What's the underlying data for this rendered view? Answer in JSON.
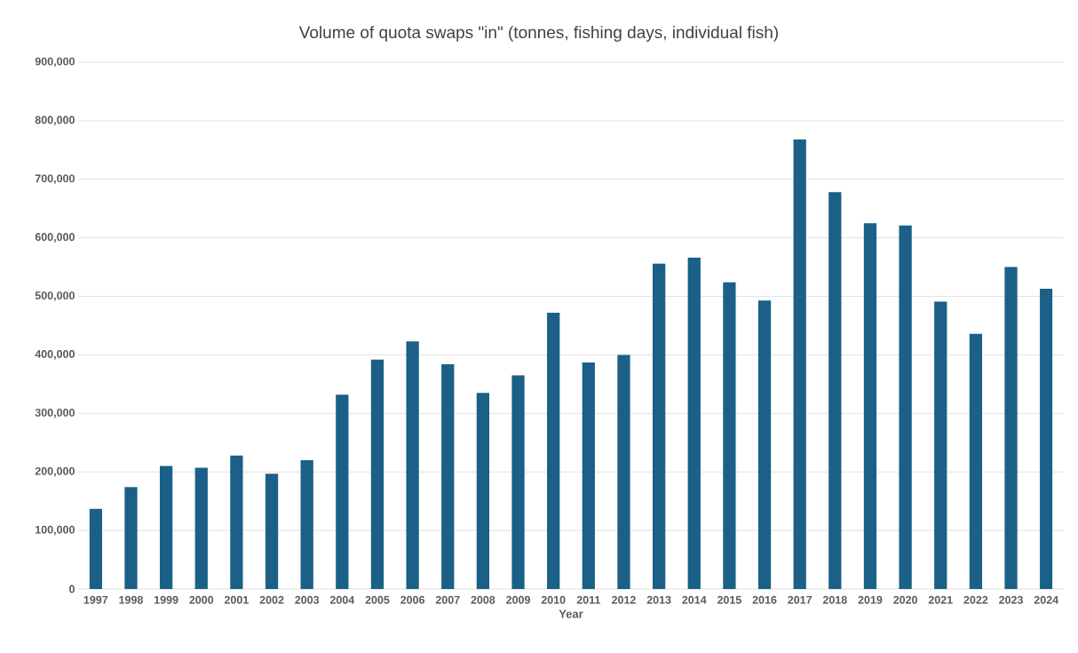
{
  "chart_data": {
    "type": "bar",
    "title": "Volume of quota swaps \"in\" (tonnes, fishing days, individual fish)",
    "xlabel": "Year",
    "categories": [
      "1997",
      "1998",
      "1999",
      "2000",
      "2001",
      "2002",
      "2003",
      "2004",
      "2005",
      "2006",
      "2007",
      "2008",
      "2009",
      "2010",
      "2011",
      "2012",
      "2013",
      "2014",
      "2015",
      "2016",
      "2017",
      "2018",
      "2019",
      "2020",
      "2021",
      "2022",
      "2023",
      "2024"
    ],
    "values": [
      137000,
      174000,
      210000,
      207000,
      228000,
      197000,
      220000,
      332000,
      392000,
      423000,
      384000,
      335000,
      365000,
      472000,
      387000,
      400000,
      556000,
      566000,
      524000,
      493000,
      768000,
      678000,
      625000,
      621000,
      491000,
      436000,
      550000,
      513000
    ],
    "color": "#1a6088",
    "ylim": [
      0,
      900000
    ],
    "yticks": [
      {
        "value": 0,
        "label": "0"
      },
      {
        "value": 100000,
        "label": "100,000"
      },
      {
        "value": 200000,
        "label": "200,000"
      },
      {
        "value": 300000,
        "label": "300,000"
      },
      {
        "value": 400000,
        "label": "400,000"
      },
      {
        "value": 500000,
        "label": "500,000"
      },
      {
        "value": 600000,
        "label": "600,000"
      },
      {
        "value": 700000,
        "label": "700,000"
      },
      {
        "value": 800000,
        "label": "800,000"
      },
      {
        "value": 900000,
        "label": "900,000"
      }
    ],
    "grid": "y"
  }
}
